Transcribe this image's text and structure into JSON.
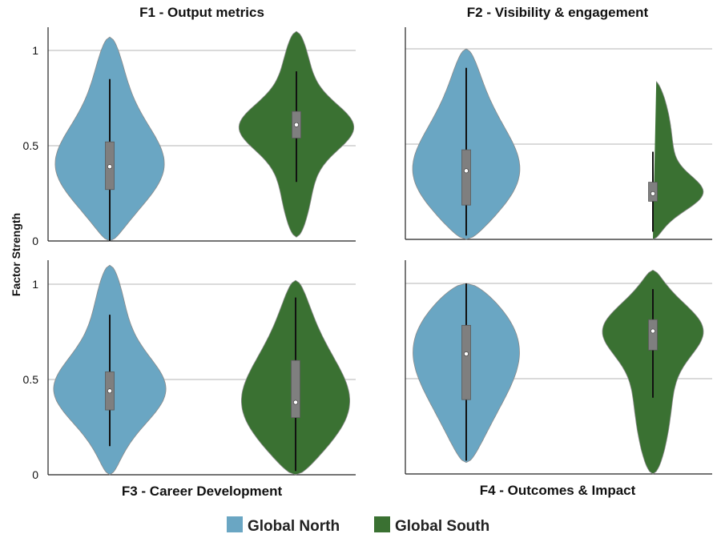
{
  "figure": {
    "ylabel": "Factor Strength",
    "legend": [
      {
        "label": "Global North",
        "color": "#6aa6c3"
      },
      {
        "label": "Global South",
        "color": "#3a7132"
      }
    ]
  },
  "chart_data": [
    {
      "type": "violin",
      "title": "F1 - Output metrics",
      "ylabel": "Factor Strength",
      "ylim": [
        0,
        1.1
      ],
      "yticks": [
        "0",
        "0.5",
        "1"
      ],
      "grid": true,
      "series": [
        {
          "name": "Global North",
          "color": "#6aa6c3",
          "range": [
            0.0,
            1.07
          ],
          "median": 0.39,
          "q1": 0.27,
          "q3": 0.52,
          "whisker": [
            0.0,
            0.85
          ],
          "mode": 0.36
        },
        {
          "name": "Global South",
          "color": "#3a7132",
          "range": [
            0.02,
            1.1
          ],
          "median": 0.61,
          "q1": 0.54,
          "q3": 0.68,
          "whisker": [
            0.31,
            0.89
          ],
          "mode": 0.6
        }
      ]
    },
    {
      "type": "violin",
      "title": "F2 - Visibility & engagement",
      "ylabel": "Factor Strength",
      "ylim": [
        0,
        1.1
      ],
      "yticks": [
        "0",
        "0.5",
        "1"
      ],
      "grid": true,
      "series": [
        {
          "name": "Global North",
          "color": "#6aa6c3",
          "range": [
            0.0,
            1.0
          ],
          "median": 0.36,
          "q1": 0.18,
          "q3": 0.47,
          "whisker": [
            0.02,
            0.9
          ],
          "mode": 0.3
        },
        {
          "name": "Global South",
          "color": "#3a7132",
          "range": [
            0.0,
            0.84
          ],
          "median": 0.24,
          "q1": 0.2,
          "q3": 0.3,
          "whisker": [
            0.04,
            0.46
          ],
          "mode": 0.23
        }
      ]
    },
    {
      "type": "violin",
      "title": "F3 -  Career Development",
      "ylabel": "Factor Strength",
      "ylim": [
        0,
        1.1
      ],
      "yticks": [
        "0",
        "0.5",
        "1"
      ],
      "grid": true,
      "series": [
        {
          "name": "Global North",
          "color": "#6aa6c3",
          "range": [
            0.0,
            1.1
          ],
          "median": 0.44,
          "q1": 0.34,
          "q3": 0.54,
          "whisker": [
            0.15,
            0.84
          ],
          "mode": 0.43
        },
        {
          "name": "Global South",
          "color": "#3a7132",
          "range": [
            0.0,
            1.02
          ],
          "median": 0.38,
          "q1": 0.3,
          "q3": 0.6,
          "whisker": [
            0.02,
            0.93
          ],
          "mode": 0.32
        }
      ]
    },
    {
      "type": "violin",
      "title": "F4 - Outcomes & Impact",
      "ylabel": "Factor Strength",
      "ylim": [
        0,
        1.1
      ],
      "yticks": [
        "0",
        "0.5",
        "1"
      ],
      "grid": true,
      "series": [
        {
          "name": "Global North",
          "color": "#6aa6c3",
          "range": [
            0.06,
            1.0
          ],
          "median": 0.63,
          "q1": 0.39,
          "q3": 0.78,
          "whisker": [
            0.07,
            1.0
          ],
          "mode": 0.76
        },
        {
          "name": "Global South",
          "color": "#3a7132",
          "range": [
            0.0,
            1.07
          ],
          "median": 0.75,
          "q1": 0.65,
          "q3": 0.81,
          "whisker": [
            0.4,
            0.97
          ],
          "mode": 0.78
        }
      ]
    }
  ]
}
